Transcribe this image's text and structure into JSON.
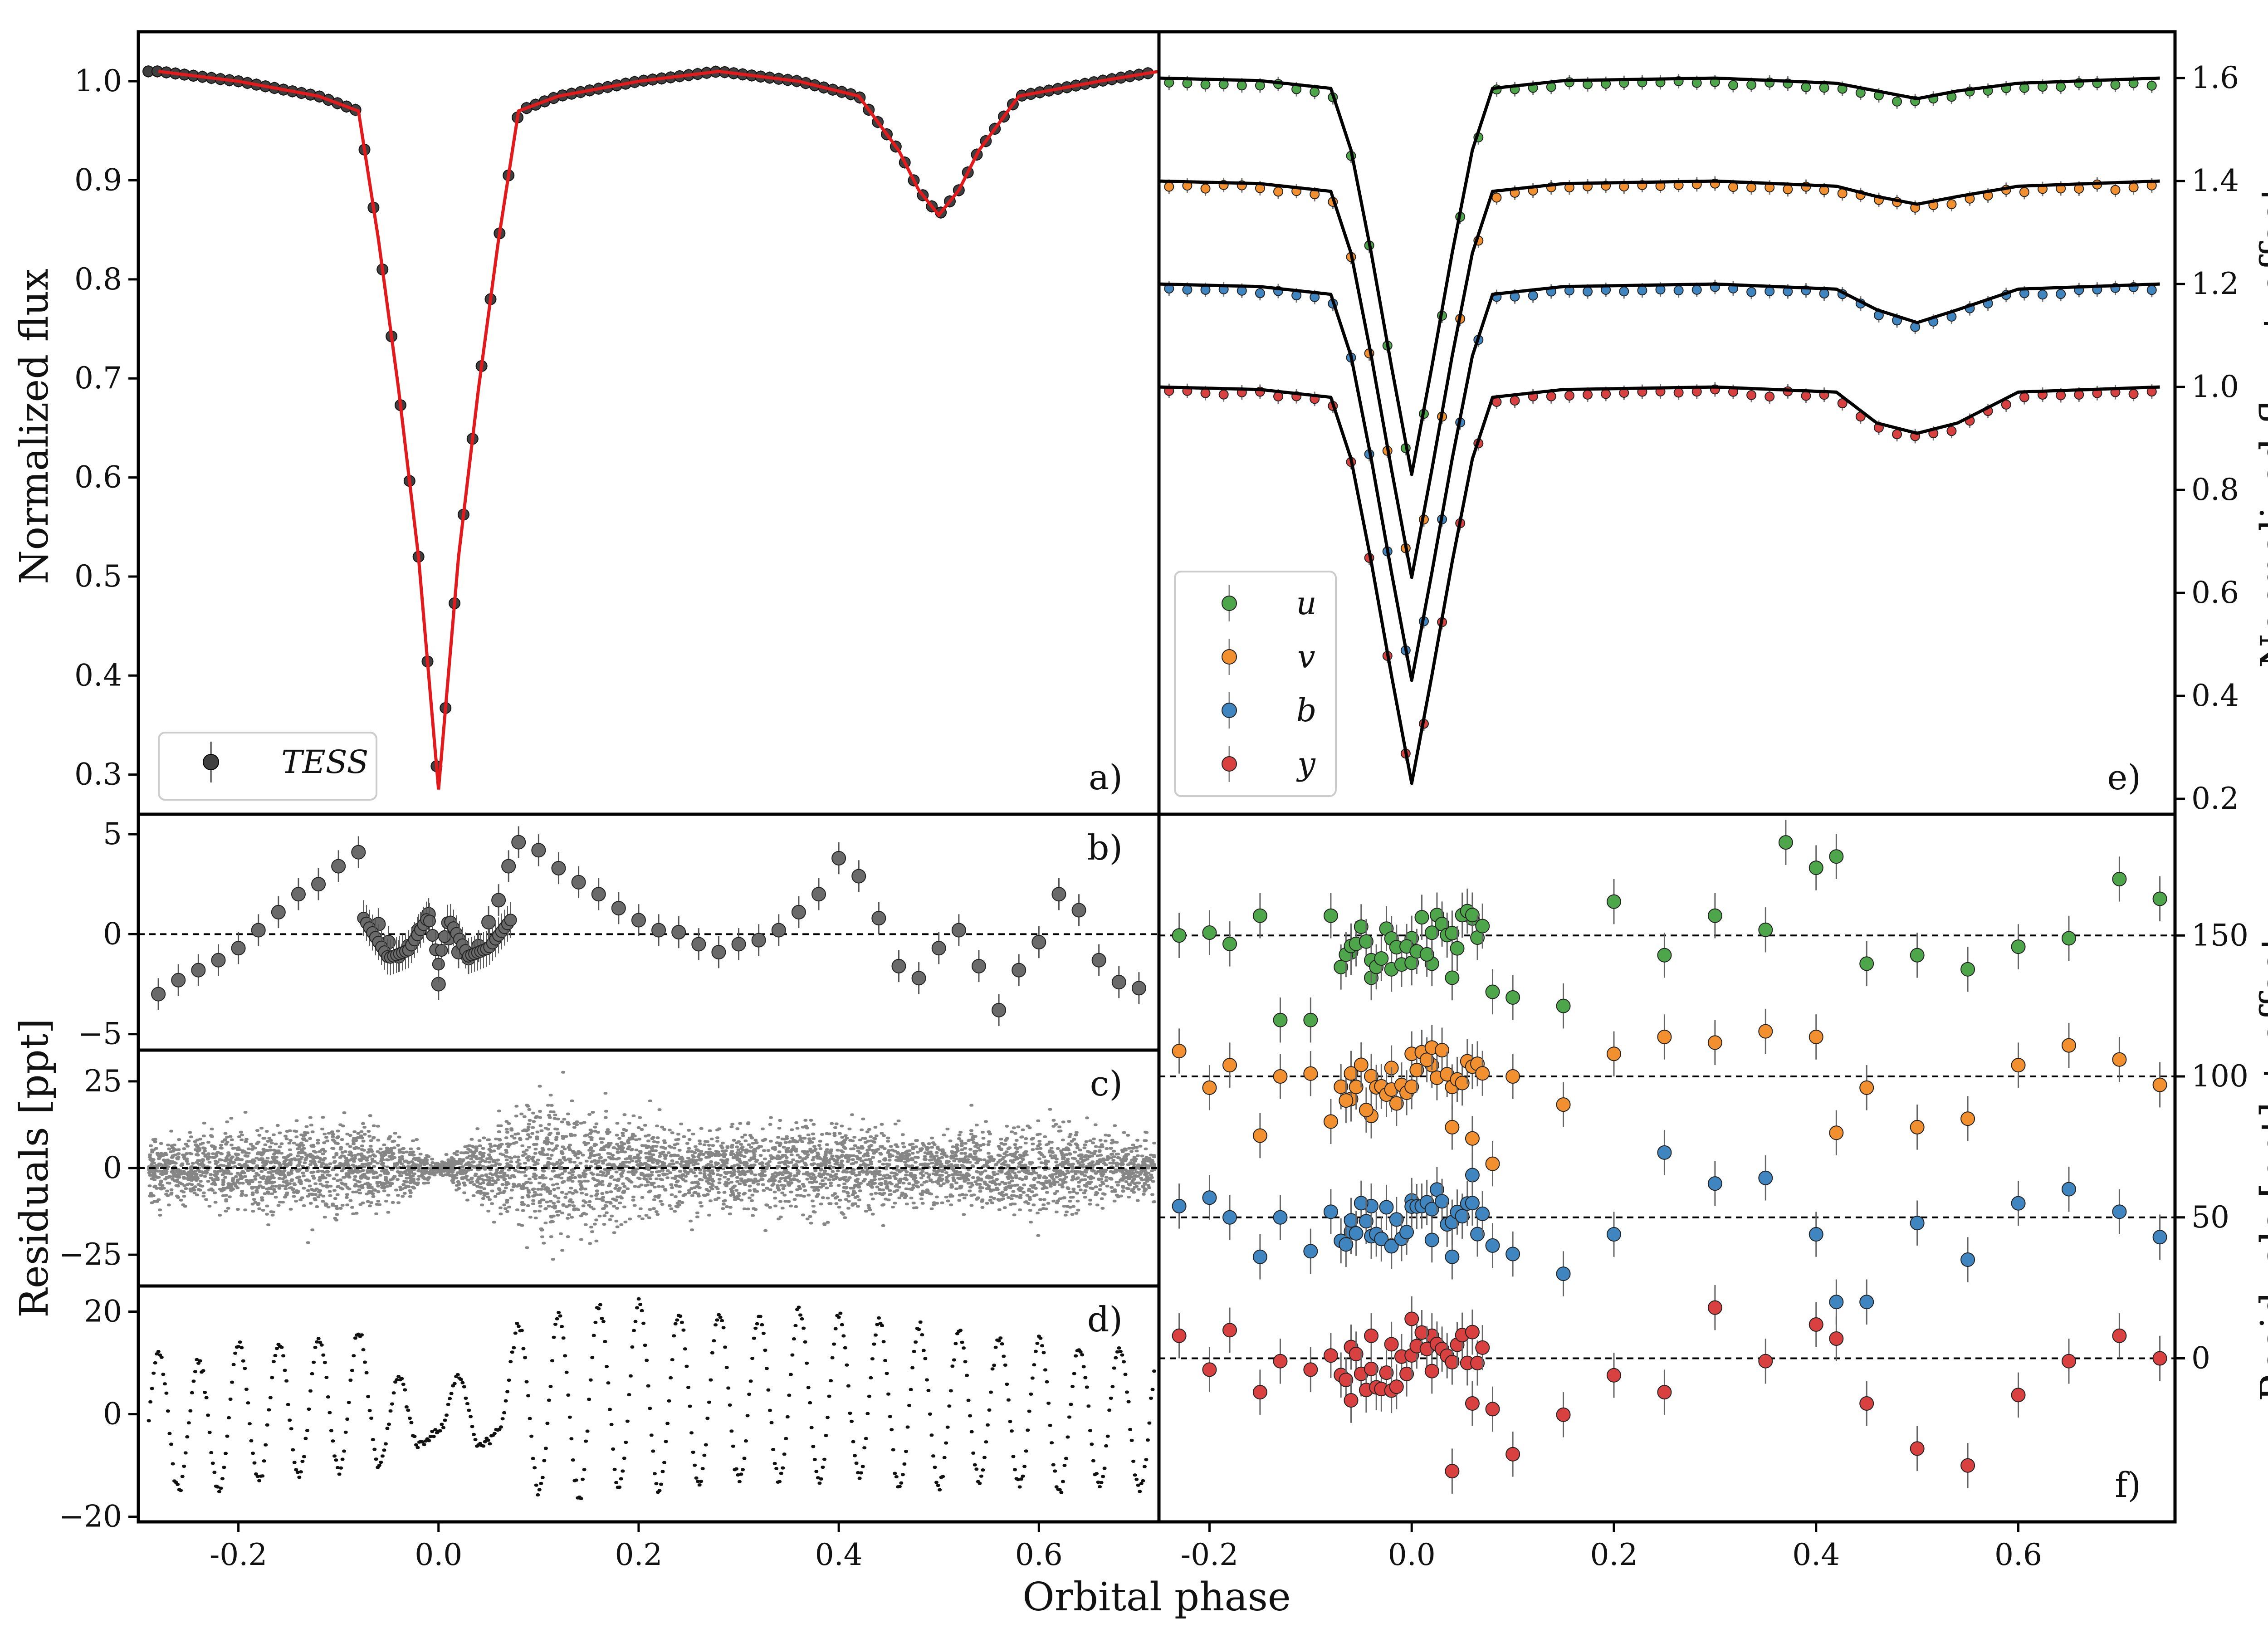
{
  "figure": {
    "xlabel": "Orbital phase",
    "ylabel_left_top": "Normalized flux",
    "ylabel_left_bottom": "Residuals [ppt]",
    "ylabel_right_top": "Normalized flux + offset",
    "ylabel_right_bottom": "Residuals [ppt] + offset"
  },
  "colors": {
    "tess": "#404040",
    "model_tess": "#e31a1c",
    "model_stromgren": "#000000",
    "u": "#4ea64a",
    "v": "#f2902f",
    "b": "#3f86c0",
    "y": "#d94040"
  },
  "chart_data": [
    {
      "panel": "a)",
      "type": "line",
      "series": [
        {
          "name": "TESS",
          "role": "data",
          "x": [
            -0.28,
            -0.2,
            -0.12,
            -0.08,
            -0.06,
            -0.04,
            -0.02,
            0.0,
            0.02,
            0.04,
            0.06,
            0.08,
            0.12,
            0.2,
            0.28,
            0.36,
            0.42,
            0.46,
            0.48,
            0.5,
            0.52,
            0.54,
            0.58,
            0.66,
            0.72
          ],
          "y": [
            1.01,
            1.0,
            0.985,
            0.97,
            0.84,
            0.69,
            0.52,
            0.285,
            0.52,
            0.69,
            0.84,
            0.97,
            0.985,
            1.0,
            1.01,
            1.0,
            0.985,
            0.93,
            0.89,
            0.865,
            0.89,
            0.93,
            0.985,
            1.0,
            1.01
          ]
        },
        {
          "name": "",
          "role": "model",
          "x": [
            -0.28,
            -0.2,
            -0.12,
            -0.08,
            -0.06,
            -0.04,
            -0.02,
            0.0,
            0.02,
            0.04,
            0.06,
            0.08,
            0.12,
            0.2,
            0.28,
            0.36,
            0.42,
            0.46,
            0.48,
            0.5,
            0.52,
            0.54,
            0.58,
            0.66,
            0.72
          ],
          "y": [
            1.01,
            1.0,
            0.985,
            0.97,
            0.84,
            0.69,
            0.52,
            0.285,
            0.52,
            0.69,
            0.84,
            0.97,
            0.985,
            1.0,
            1.01,
            1.0,
            0.985,
            0.93,
            0.89,
            0.865,
            0.89,
            0.93,
            0.985,
            1.0,
            1.01
          ]
        }
      ],
      "xlim": [
        -0.3,
        0.72
      ],
      "ylim": [
        0.26,
        1.05
      ],
      "yticks": [
        "0.3",
        "0.4",
        "0.5",
        "0.6",
        "0.7",
        "0.8",
        "0.9",
        "1.0"
      ],
      "legend": "bottom-left"
    },
    {
      "panel": "b)",
      "type": "scatter",
      "x": [
        -0.28,
        -0.26,
        -0.24,
        -0.22,
        -0.2,
        -0.18,
        -0.16,
        -0.14,
        -0.12,
        -0.1,
        -0.08,
        -0.06,
        -0.05,
        -0.04,
        -0.03,
        -0.02,
        -0.01,
        0.0,
        0.01,
        0.02,
        0.03,
        0.04,
        0.05,
        0.06,
        0.07,
        0.08,
        0.1,
        0.12,
        0.14,
        0.16,
        0.18,
        0.2,
        0.22,
        0.24,
        0.26,
        0.28,
        0.3,
        0.32,
        0.34,
        0.36,
        0.38,
        0.4,
        0.42,
        0.44,
        0.46,
        0.48,
        0.5,
        0.52,
        0.54,
        0.56,
        0.58,
        0.6,
        0.62,
        0.64,
        0.66,
        0.68,
        0.7
      ],
      "y": [
        -3,
        -2.3,
        -1.8,
        -1.3,
        -0.7,
        0.2,
        1.1,
        2,
        2.5,
        3.4,
        4.1,
        0.5,
        -0.4,
        -1.1,
        -0.6,
        0.2,
        1.0,
        -2.5,
        -0.2,
        -0.9,
        -1.2,
        -0.6,
        0.6,
        1.7,
        3.4,
        4.6,
        4.2,
        3.3,
        2.6,
        2.0,
        1.3,
        0.7,
        0.2,
        0.1,
        -0.5,
        -0.9,
        -0.5,
        -0.3,
        0.2,
        1.1,
        2.0,
        3.8,
        2.9,
        0.8,
        -1.6,
        -2.2,
        -0.7,
        0.2,
        -1.6,
        -3.8,
        -1.8,
        -0.4,
        2.0,
        1.2,
        -1.3,
        -2.4,
        -2.7
      ],
      "xlim": [
        -0.3,
        0.72
      ],
      "ylim": [
        -5.8,
        6.0
      ],
      "yticks": [
        "−5",
        "0",
        "5"
      ],
      "hline": 0
    },
    {
      "panel": "c)",
      "type": "scatter",
      "description_series": [
        {
          "name": "",
          "x": [
            -0.28,
            -0.2,
            -0.12,
            -0.06,
            -0.02,
            0.0,
            0.02,
            0.06,
            0.1,
            0.2,
            0.3,
            0.4,
            0.5,
            0.6,
            0.7
          ],
          "spread": [
            12,
            14,
            18,
            14,
            7,
            2,
            7,
            16,
            26,
            16,
            14,
            16,
            12,
            17,
            11
          ]
        }
      ],
      "xlim": [
        -0.3,
        0.72
      ],
      "ylim": [
        -34,
        34
      ],
      "yticks": [
        "−25",
        "0",
        "25"
      ],
      "hline": 0
    },
    {
      "panel": "d)",
      "type": "line",
      "x": [
        -0.28,
        -0.26,
        -0.24,
        -0.22,
        -0.2,
        -0.18,
        -0.16,
        -0.14,
        -0.12,
        -0.1,
        -0.08,
        -0.06,
        -0.04,
        -0.02,
        0.0,
        0.02,
        0.04,
        0.06,
        0.08,
        0.1,
        0.12,
        0.14,
        0.16,
        0.18,
        0.2,
        0.22,
        0.24,
        0.26,
        0.28,
        0.3,
        0.32,
        0.34,
        0.36,
        0.38,
        0.4,
        0.42,
        0.44,
        0.46,
        0.48,
        0.5,
        0.52,
        0.54,
        0.56,
        0.58,
        0.6,
        0.62,
        0.64,
        0.66,
        0.68,
        0.7
      ],
      "y": [
        12,
        -15,
        11,
        -15,
        14,
        -13,
        14,
        -12,
        15,
        -11,
        16,
        -10,
        7,
        -6,
        -3,
        7,
        -6,
        -3,
        17,
        -15,
        20,
        -16,
        21,
        -14,
        22,
        -15,
        20,
        -14,
        20,
        -13,
        19,
        -13,
        20,
        -13,
        19,
        -12,
        18,
        -14,
        17,
        -14,
        16,
        -13,
        15,
        -14,
        15,
        -15,
        13,
        -14,
        13,
        -14
      ],
      "xlim": [
        -0.3,
        0.72
      ],
      "ylim": [
        -21,
        25
      ],
      "yticks": [
        "−20",
        "0",
        "20"
      ]
    },
    {
      "panel": "e)",
      "type": "line",
      "series": [
        {
          "name": "u",
          "offset": 0.6,
          "x": [
            -0.25,
            -0.15,
            -0.08,
            -0.06,
            -0.04,
            -0.02,
            0.0,
            0.02,
            0.04,
            0.06,
            0.08,
            0.15,
            0.3,
            0.42,
            0.46,
            0.5,
            0.54,
            0.6,
            0.74
          ],
          "y": [
            1.0,
            0.995,
            0.98,
            0.86,
            0.66,
            0.44,
            0.23,
            0.44,
            0.66,
            0.86,
            0.98,
            0.995,
            1.0,
            0.99,
            0.975,
            0.96,
            0.975,
            0.99,
            1.0
          ]
        },
        {
          "name": "v",
          "offset": 0.4,
          "x": [
            -0.25,
            -0.15,
            -0.08,
            -0.06,
            -0.04,
            -0.02,
            0.0,
            0.02,
            0.04,
            0.06,
            0.08,
            0.15,
            0.3,
            0.42,
            0.46,
            0.5,
            0.54,
            0.6,
            0.74
          ],
          "y": [
            1.0,
            0.995,
            0.98,
            0.86,
            0.66,
            0.44,
            0.23,
            0.44,
            0.66,
            0.86,
            0.98,
            0.995,
            1.0,
            0.99,
            0.97,
            0.955,
            0.97,
            0.99,
            1.0
          ]
        },
        {
          "name": "b",
          "offset": 0.2,
          "x": [
            -0.25,
            -0.15,
            -0.08,
            -0.06,
            -0.04,
            -0.02,
            0.0,
            0.02,
            0.04,
            0.06,
            0.08,
            0.15,
            0.3,
            0.42,
            0.46,
            0.5,
            0.54,
            0.6,
            0.74
          ],
          "y": [
            1.0,
            0.995,
            0.98,
            0.86,
            0.66,
            0.44,
            0.23,
            0.44,
            0.66,
            0.86,
            0.98,
            0.995,
            1.0,
            0.99,
            0.95,
            0.925,
            0.95,
            0.99,
            1.0
          ]
        },
        {
          "name": "y",
          "offset": 0.0,
          "x": [
            -0.25,
            -0.15,
            -0.08,
            -0.06,
            -0.04,
            -0.02,
            0.0,
            0.02,
            0.04,
            0.06,
            0.08,
            0.15,
            0.3,
            0.42,
            0.46,
            0.5,
            0.54,
            0.6,
            0.74
          ],
          "y": [
            1.0,
            0.995,
            0.98,
            0.86,
            0.66,
            0.44,
            0.23,
            0.44,
            0.66,
            0.86,
            0.98,
            0.995,
            1.0,
            0.99,
            0.93,
            0.91,
            0.93,
            0.99,
            1.0
          ]
        }
      ],
      "xlim": [
        -0.25,
        0.755
      ],
      "ylim": [
        0.17,
        1.69
      ],
      "yticks": [
        "0.2",
        "0.4",
        "0.6",
        "0.8",
        "1.0",
        "1.2",
        "1.4",
        "1.6"
      ],
      "legend": "bottom-left"
    },
    {
      "panel": "f)",
      "type": "scatter",
      "series": [
        {
          "name": "u",
          "offset": 150,
          "x": [
            -0.23,
            -0.2,
            -0.18,
            -0.15,
            -0.13,
            -0.1,
            -0.08,
            -0.06,
            -0.04,
            -0.02,
            0.0,
            0.02,
            0.04,
            0.06,
            0.08,
            0.1,
            0.15,
            0.2,
            0.25,
            0.3,
            0.35,
            0.37,
            0.4,
            0.42,
            0.45,
            0.5,
            0.55,
            0.6,
            0.65,
            0.7,
            0.74
          ],
          "y": [
            0,
            1,
            -3,
            7,
            -30,
            -30,
            7,
            -6,
            -15,
            -12,
            -1,
            -10,
            -15,
            6,
            -20,
            -22,
            -25,
            12,
            -7,
            7,
            2,
            33,
            24,
            28,
            -10,
            -7,
            -12,
            -4,
            -1,
            20,
            13
          ]
        },
        {
          "name": "v",
          "offset": 100,
          "x": [
            -0.23,
            -0.2,
            -0.18,
            -0.15,
            -0.13,
            -0.1,
            -0.08,
            -0.06,
            -0.04,
            -0.02,
            0.0,
            0.02,
            0.04,
            0.06,
            0.08,
            0.1,
            0.15,
            0.2,
            0.25,
            0.3,
            0.35,
            0.4,
            0.42,
            0.45,
            0.5,
            0.55,
            0.6,
            0.65,
            0.7,
            0.74
          ],
          "y": [
            9,
            -4,
            4,
            -21,
            0,
            1,
            -16,
            -8,
            -14,
            3,
            8,
            4,
            -18,
            -22,
            -31,
            0,
            -10,
            8,
            14,
            12,
            16,
            14,
            -20,
            -4,
            -18,
            -15,
            4,
            11,
            6,
            -3
          ]
        },
        {
          "name": "b",
          "offset": 50,
          "x": [
            -0.23,
            -0.2,
            -0.18,
            -0.15,
            -0.13,
            -0.1,
            -0.08,
            -0.06,
            -0.04,
            -0.02,
            0.0,
            0.02,
            0.04,
            0.06,
            0.08,
            0.1,
            0.15,
            0.2,
            0.25,
            0.3,
            0.35,
            0.4,
            0.42,
            0.45,
            0.5,
            0.55,
            0.6,
            0.65,
            0.7,
            0.74
          ],
          "y": [
            4,
            7,
            0,
            -14,
            0,
            -12,
            2,
            -5,
            4,
            -10,
            6,
            -8,
            -14,
            15,
            -10,
            -13,
            -20,
            -6,
            23,
            12,
            14,
            -6,
            -30,
            -30,
            -2,
            -15,
            5,
            10,
            2,
            -7
          ]
        },
        {
          "name": "y",
          "offset": 0,
          "x": [
            -0.23,
            -0.2,
            -0.18,
            -0.15,
            -0.13,
            -0.1,
            -0.08,
            -0.06,
            -0.04,
            -0.02,
            0.0,
            0.02,
            0.04,
            0.06,
            0.08,
            0.1,
            0.15,
            0.2,
            0.25,
            0.3,
            0.35,
            0.4,
            0.42,
            0.45,
            0.5,
            0.55,
            0.6,
            0.65,
            0.7,
            0.74
          ],
          "y": [
            8,
            -4,
            10,
            -12,
            -1,
            -4,
            1,
            4,
            8,
            5,
            14,
            8,
            -40,
            -16,
            -18,
            -34,
            -20,
            -6,
            -12,
            18,
            -1,
            12,
            7,
            -16,
            -32,
            -38,
            -13,
            -1,
            8,
            0
          ]
        }
      ],
      "xlim": [
        -0.25,
        0.755
      ],
      "ylim": [
        -58,
        193
      ],
      "yticks": [
        "0",
        "50",
        "100",
        "150"
      ],
      "hlines": [
        0,
        50,
        100,
        150
      ]
    }
  ],
  "axes": {
    "xticks_left": [
      "-0.2",
      "0.0",
      "0.2",
      "0.4",
      "0.6"
    ],
    "xticks_right": [
      "-0.2",
      "0.0",
      "0.2",
      "0.4",
      "0.6"
    ],
    "legend_a": {
      "label": "TESS"
    },
    "legend_e": {
      "labels": [
        "u",
        "v",
        "b",
        "y"
      ]
    }
  }
}
